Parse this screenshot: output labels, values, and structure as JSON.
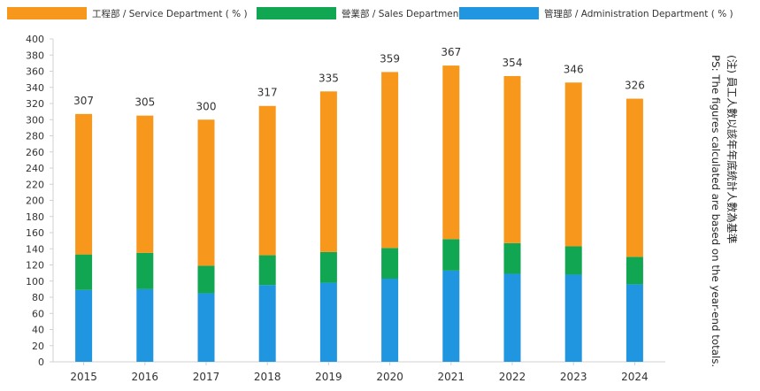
{
  "chart_data": {
    "type": "bar",
    "stacked": true,
    "categories": [
      "2015",
      "2016",
      "2017",
      "2018",
      "2019",
      "2020",
      "2021",
      "2022",
      "2023",
      "2024"
    ],
    "series": [
      {
        "name": "管理部 / Administration Department ( % )",
        "color": "#2196e0",
        "values": [
          89,
          90,
          85,
          95,
          98,
          103,
          113,
          109,
          108,
          96
        ]
      },
      {
        "name": "營業部 / Sales Department ( % )",
        "color": "#11a651",
        "values": [
          44,
          45,
          34,
          37,
          38,
          38,
          39,
          38,
          35,
          34
        ]
      },
      {
        "name": "工程部 / Service Department ( % )",
        "color": "#f7981d",
        "values": [
          174,
          170,
          181,
          185,
          199,
          218,
          215,
          207,
          203,
          196
        ]
      }
    ],
    "totals": [
      "307",
      "305",
      "300",
      "317",
      "335",
      "359",
      "367",
      "354",
      "346",
      "326"
    ],
    "ylim": [
      0,
      400
    ],
    "yticks": [
      0,
      20,
      40,
      60,
      80,
      100,
      120,
      140,
      160,
      180,
      200,
      220,
      240,
      260,
      280,
      300,
      320,
      340,
      360,
      380,
      400
    ],
    "grid": false,
    "legend_position": "top"
  },
  "legend": [
    {
      "label": "工程部 / Service Department ( % )",
      "color": "#f7981d"
    },
    {
      "label": "營業部 / Sales Department ( % )",
      "color": "#11a651"
    },
    {
      "label": "管理部 / Administration Department ( % )",
      "color": "#2196e0"
    }
  ],
  "note": {
    "line1": "(注) 員工人數以該年年底統計人數為基準",
    "line2": "PS: The figures calculated are based on the year-end totals."
  }
}
